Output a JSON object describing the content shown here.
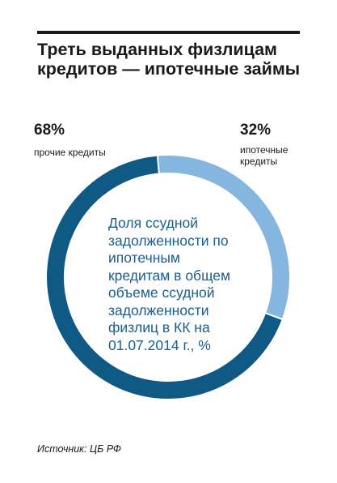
{
  "title": "Треть выданных физлицам кредитов — ипотечные займы",
  "chart_data": {
    "type": "pie",
    "variant": "donut",
    "title": "Треть выданных физлицам кредитов — ипотечные займы",
    "center_text": "Доля ссудной задолженности по ипотечным кредитам в общем объеме ссудной задолженности физлиц в КК на 01.07.2014 г., %",
    "slices": [
      {
        "label": "ипотечные кредиты",
        "value": 32,
        "value_label": "32%",
        "color": "#85b6df"
      },
      {
        "label": "прочие кредиты",
        "value": 68,
        "value_label": "68%",
        "color": "#0f5a85"
      }
    ]
  },
  "source": "Источник: ЦБ РФ"
}
